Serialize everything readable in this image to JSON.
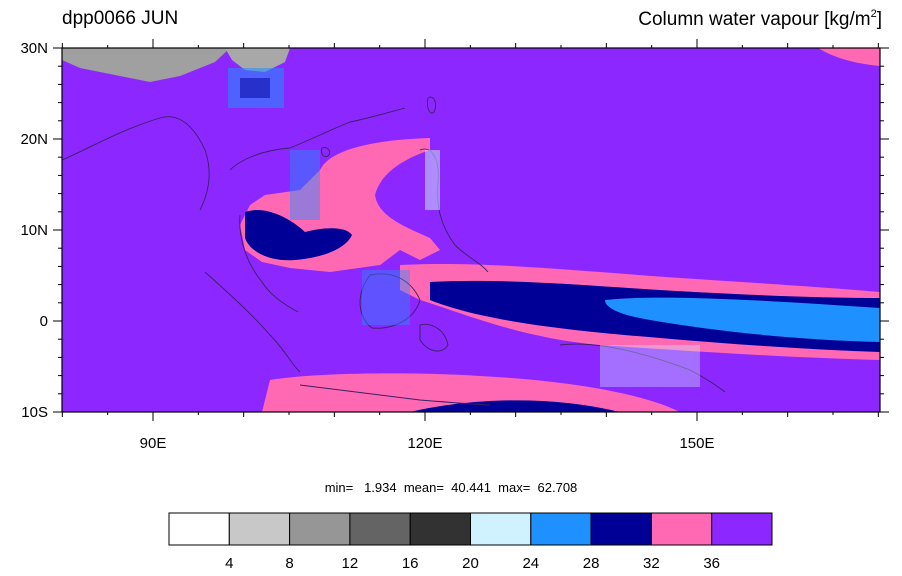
{
  "header": {
    "left_title": "dpp0066 JUN",
    "right_title_main": "Column water vapour [kg/m",
    "right_title_sup": "2",
    "right_title_close": "]"
  },
  "map": {
    "lat_labels": [
      "30N",
      "20N",
      "10N",
      "0",
      "10S"
    ],
    "lon_labels": [
      "90E",
      "120E",
      "150E"
    ]
  },
  "stats": {
    "text": "min=   1.934  mean=  40.441  max=  62.708"
  },
  "colorbar": {
    "colors": [
      "#ffffff",
      "#c8c8c8",
      "#969696",
      "#646464",
      "#323232",
      "#d0f2ff",
      "#1e90ff",
      "#000096",
      "#ff69b4",
      "#8c28ff"
    ],
    "tick_labels": [
      "4",
      "8",
      "12",
      "16",
      "20",
      "24",
      "28",
      "32",
      "36"
    ]
  },
  "palette": {
    "background_field": "#8c28ff",
    "band_pink": "#ff69b4",
    "band_navy": "#000096",
    "band_blue": "#1e90ff",
    "land_grey": "#a0a0a0",
    "coastline": "#3a2060"
  }
}
